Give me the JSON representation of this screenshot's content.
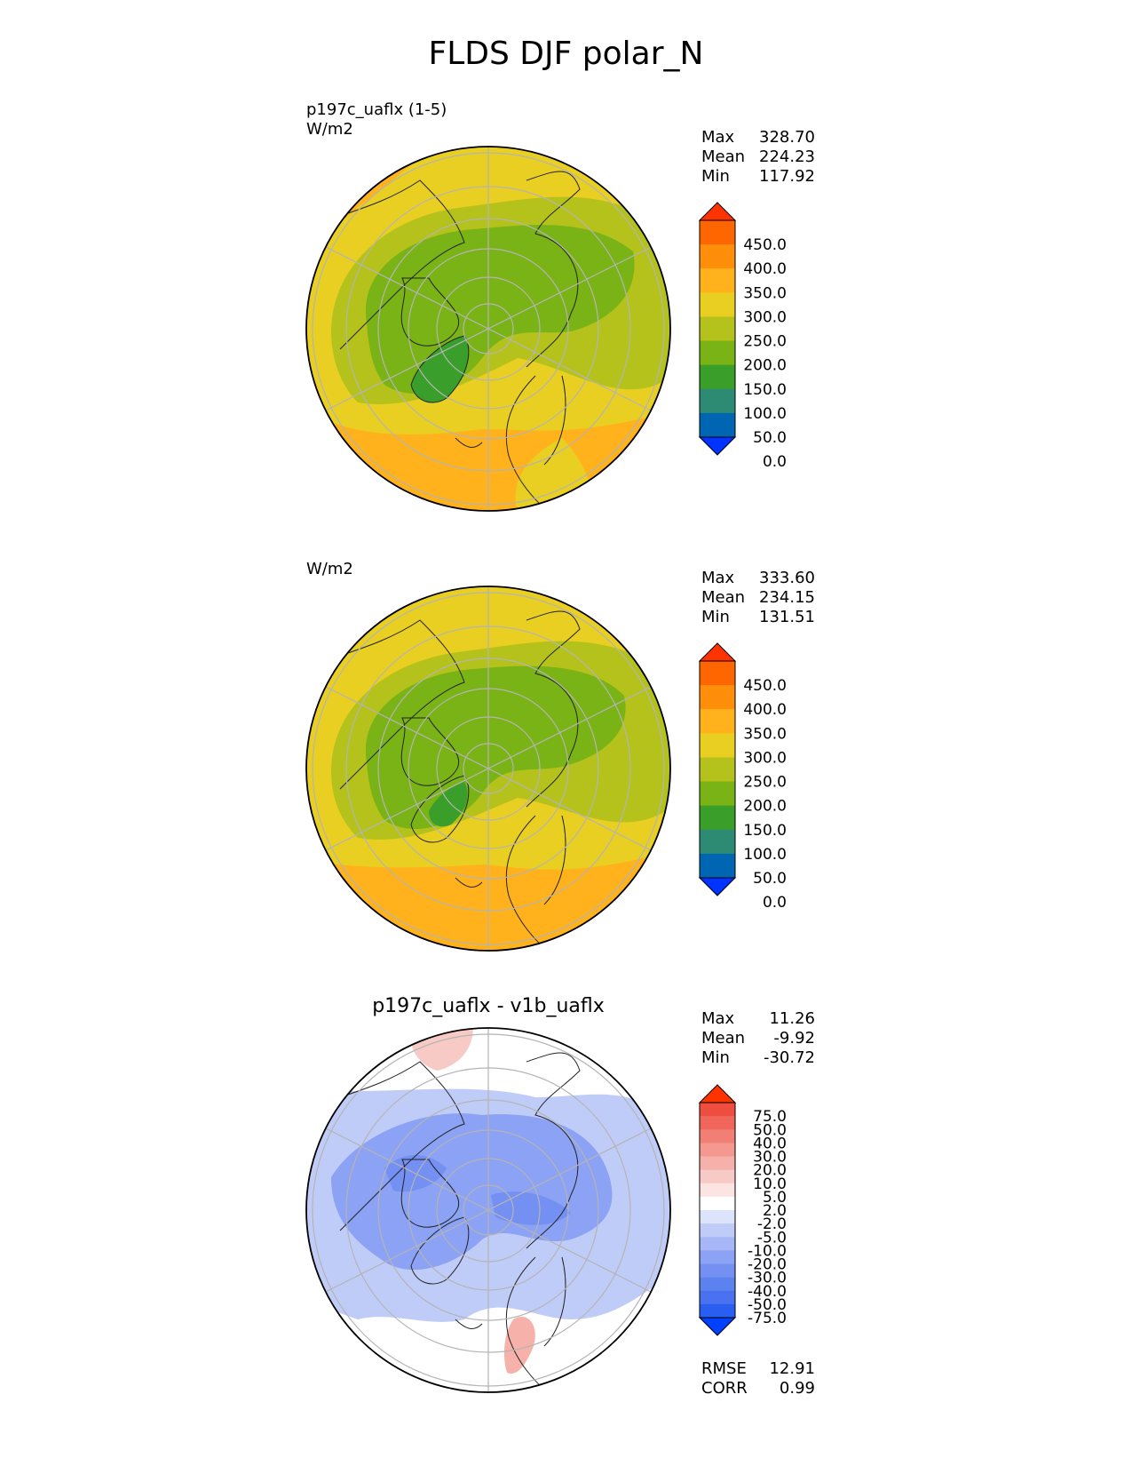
{
  "figure": {
    "title": "FLDS DJF polar_N"
  },
  "colors": {
    "abs_levels": [
      "#0033ff",
      "#0066b3",
      "#2e8b73",
      "#3a9e2a",
      "#7ab315",
      "#b5c21c",
      "#e8cf22",
      "#ffb21c",
      "#ff8f0a",
      "#ff6600",
      "#ff3300"
    ],
    "diff_levels": [
      "#0040ff",
      "#2a5ef0",
      "#4a72f0",
      "#5c82f0",
      "#7490f2",
      "#8ca2f4",
      "#a6b6f6",
      "#c0ccf8",
      "#dce4fb",
      "#ffffff",
      "#fbe4e2",
      "#f8cac6",
      "#f6b1aa",
      "#f49890",
      "#f27f75",
      "#f0665a",
      "#ee4d40",
      "#ff3300"
    ],
    "map_outline": "#000000",
    "grid": "#b4b4b4",
    "coast": "#222222"
  },
  "chart_data": [
    {
      "type": "heatmap",
      "title": "",
      "subtitle_lines": [
        "p197c_uaflx (1-5)",
        "W/m2"
      ],
      "projection": "north-polar-stereographic",
      "stats": {
        "Max": "328.70",
        "Mean": "224.23",
        "Min": "117.92"
      },
      "colorbar": {
        "ticks": [
          "450.0",
          "400.0",
          "350.0",
          "300.0",
          "250.0",
          "200.0",
          "150.0",
          "100.0",
          "50.0",
          "0.0"
        ],
        "extend": "both"
      }
    },
    {
      "type": "heatmap",
      "title": "",
      "subtitle_lines": [
        "W/m2"
      ],
      "projection": "north-polar-stereographic",
      "stats": {
        "Max": "333.60",
        "Mean": "234.15",
        "Min": "131.51"
      },
      "colorbar": {
        "ticks": [
          "450.0",
          "400.0",
          "350.0",
          "300.0",
          "250.0",
          "200.0",
          "150.0",
          "100.0",
          "50.0",
          "0.0"
        ],
        "extend": "both"
      }
    },
    {
      "type": "heatmap",
      "title": "p197c_uaflx - v1b_uaflx",
      "subtitle_lines": [],
      "projection": "north-polar-stereographic",
      "stats": {
        "Max": "11.26",
        "Mean": "-9.92",
        "Min": "-30.72"
      },
      "metrics": {
        "RMSE": "12.91",
        "CORR": "0.99"
      },
      "colorbar": {
        "ticks": [
          "75.0",
          "50.0",
          "40.0",
          "30.0",
          "20.0",
          "10.0",
          "5.0",
          "2.0",
          "-2.0",
          "-5.0",
          "-10.0",
          "-20.0",
          "-30.0",
          "-40.0",
          "-50.0",
          "-75.0"
        ],
        "extend": "both"
      }
    }
  ]
}
